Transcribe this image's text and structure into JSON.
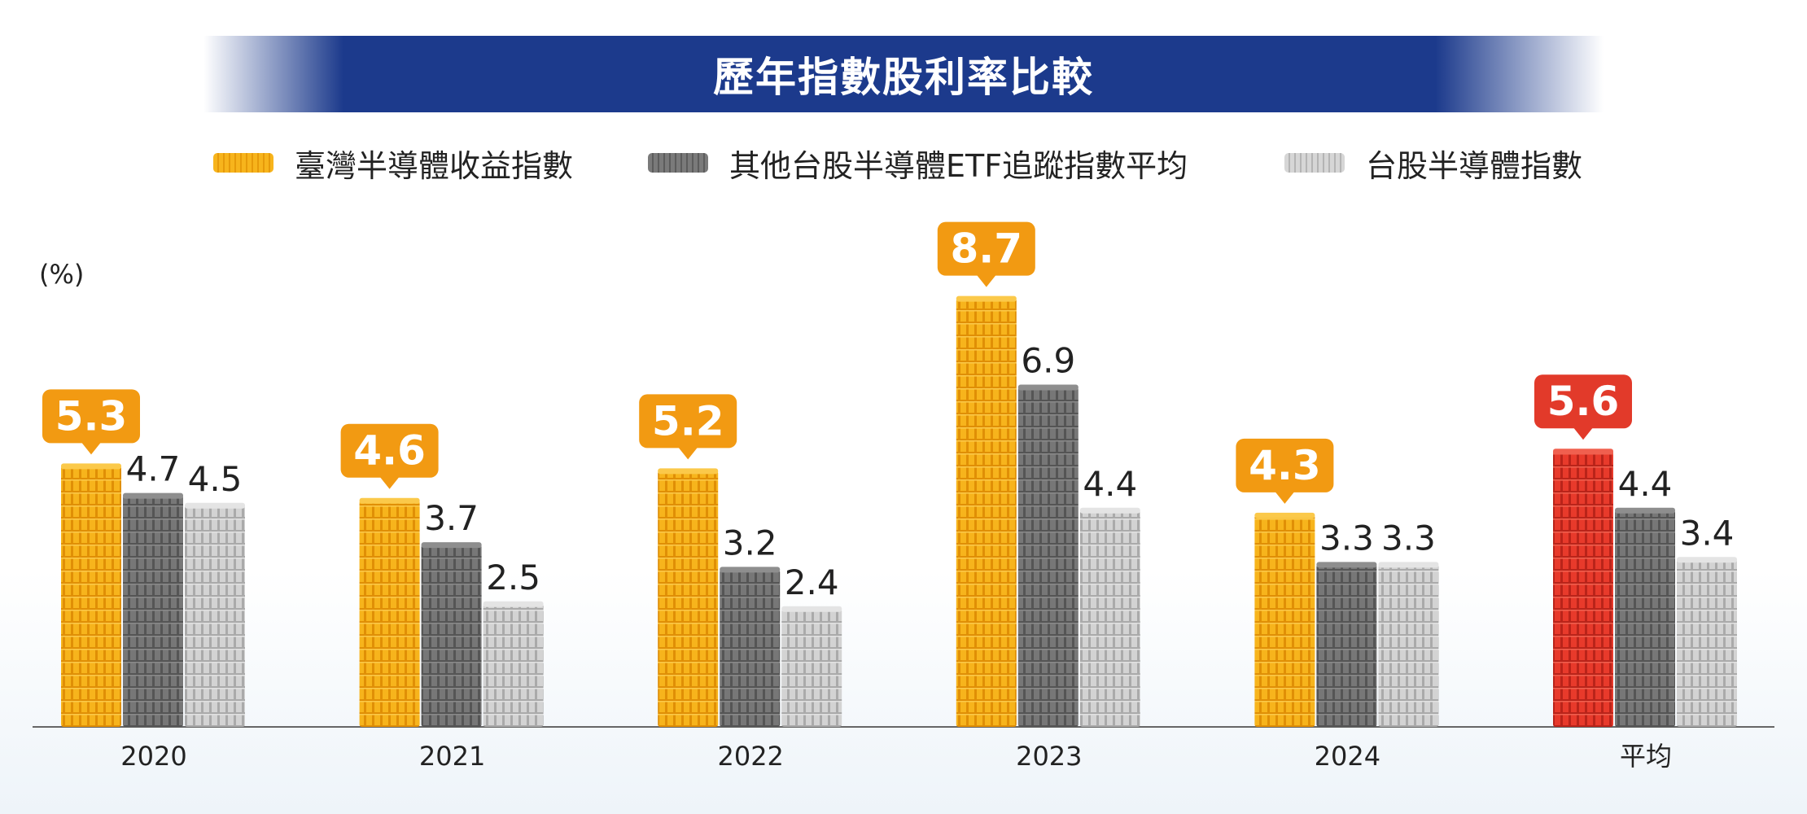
{
  "chart_data": {
    "type": "bar",
    "title": "歷年指數股利率比較",
    "unit_label": "(%)",
    "categories": [
      "2020",
      "2021",
      "2022",
      "2023",
      "2024",
      "平均"
    ],
    "series": [
      {
        "name": "臺灣半導體收益指數",
        "values": [
          5.3,
          4.6,
          5.2,
          8.7,
          4.3,
          5.6
        ],
        "color": "#f5a80f"
      },
      {
        "name": "其他台股半導體ETF追蹤指數平均",
        "values": [
          4.7,
          3.7,
          3.2,
          6.9,
          3.3,
          4.4
        ],
        "color": "#707070"
      },
      {
        "name": "台股半導體指數",
        "values": [
          4.5,
          2.5,
          2.4,
          4.4,
          3.3,
          3.4
        ],
        "color": "#c8c8c8"
      }
    ],
    "highlight_color": "#f29a12",
    "average_highlight_color": "#e23a2a",
    "ylim": [
      0,
      10
    ],
    "grid": false,
    "legend_position": "top-center"
  }
}
